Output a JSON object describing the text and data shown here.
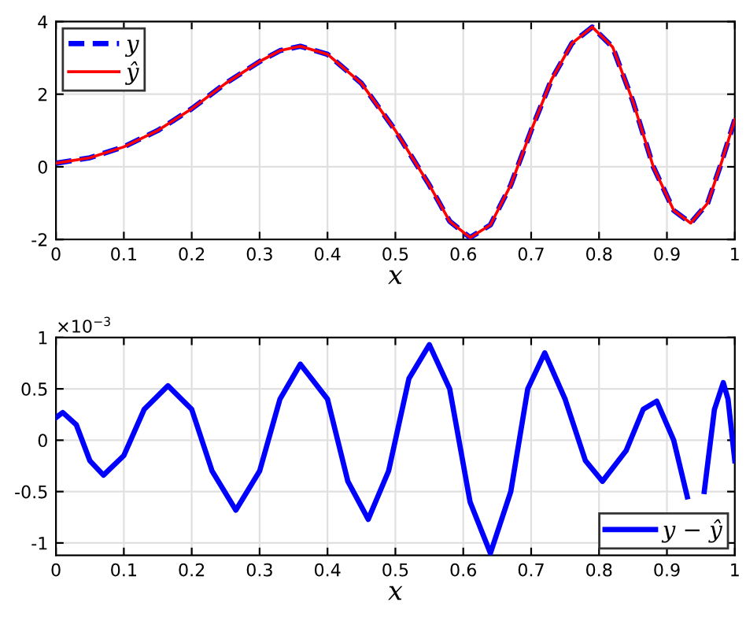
{
  "chart_data": [
    {
      "type": "line",
      "xlabel": "x",
      "xlim": [
        0,
        1
      ],
      "xticks": [
        0,
        0.1,
        0.2,
        0.3,
        0.4,
        0.5,
        0.6,
        0.7,
        0.8,
        0.9,
        1
      ],
      "ylim": [
        -2,
        4
      ],
      "yticks": [
        -2,
        0,
        2,
        4
      ],
      "grid": true,
      "legend": "top left",
      "x": [
        0,
        0.05,
        0.1,
        0.15,
        0.2,
        0.25,
        0.3,
        0.33,
        0.36,
        0.4,
        0.45,
        0.5,
        0.55,
        0.58,
        0.61,
        0.64,
        0.67,
        0.7,
        0.73,
        0.76,
        0.79,
        0.82,
        0.85,
        0.88,
        0.91,
        0.935,
        0.96,
        0.98,
        1.0
      ],
      "series": [
        {
          "name": "y",
          "color": "#0000ff",
          "line_style": "dashed",
          "values": [
            0.1,
            0.25,
            0.55,
            1.0,
            1.6,
            2.3,
            2.9,
            3.2,
            3.32,
            3.1,
            2.3,
            1.0,
            -0.5,
            -1.5,
            -1.95,
            -1.6,
            -0.5,
            1.0,
            2.4,
            3.4,
            3.85,
            3.3,
            1.8,
            0.0,
            -1.2,
            -1.55,
            -1.0,
            0.1,
            1.3
          ]
        },
        {
          "name": "ŷ",
          "color": "#ff0000",
          "line_style": "solid",
          "values": [
            0.1,
            0.25,
            0.55,
            1.0,
            1.6,
            2.3,
            2.9,
            3.2,
            3.32,
            3.1,
            2.3,
            1.0,
            -0.5,
            -1.5,
            -1.95,
            -1.6,
            -0.5,
            1.0,
            2.4,
            3.4,
            3.85,
            3.3,
            1.8,
            0.0,
            -1.2,
            -1.55,
            -1.0,
            0.1,
            1.3
          ]
        }
      ]
    },
    {
      "type": "line",
      "xlabel": "x",
      "xlim": [
        0,
        1
      ],
      "xticks": [
        0,
        0.1,
        0.2,
        0.3,
        0.4,
        0.5,
        0.6,
        0.7,
        0.8,
        0.9,
        1
      ],
      "ylim": [
        -1.12,
        1
      ],
      "yticks": [
        -1,
        -0.5,
        0,
        0.5,
        1
      ],
      "grid": true,
      "legend": "bottom right",
      "annotations": [
        "×10$^{−3}$"
      ],
      "x": [
        0,
        0.01,
        0.03,
        0.05,
        0.07,
        0.1,
        0.13,
        0.165,
        0.2,
        0.23,
        0.265,
        0.3,
        0.33,
        0.36,
        0.4,
        0.43,
        0.46,
        0.49,
        0.52,
        0.55,
        0.58,
        0.61,
        0.64,
        0.67,
        0.695,
        0.72,
        0.75,
        0.78,
        0.805,
        0.84,
        0.865,
        0.885,
        0.91,
        0.93,
        0.945,
        0.955,
        0.97,
        0.983,
        0.99,
        1.0
      ],
      "series": [
        {
          "name": "y − ŷ",
          "color": "#0000ff",
          "line_style": "solid",
          "values": [
            0.22,
            0.27,
            0.15,
            -0.2,
            -0.34,
            -0.15,
            0.3,
            0.53,
            0.3,
            -0.3,
            -0.68,
            -0.3,
            0.4,
            0.74,
            0.4,
            -0.4,
            -0.77,
            -0.3,
            0.6,
            0.93,
            0.5,
            -0.6,
            -1.1,
            -0.5,
            0.5,
            0.85,
            0.4,
            -0.2,
            -0.4,
            -0.1,
            0.3,
            0.38,
            0.0,
            -0.55,
            null,
            -0.5,
            0.3,
            0.56,
            0.4,
            -0.2
          ]
        }
      ]
    }
  ]
}
